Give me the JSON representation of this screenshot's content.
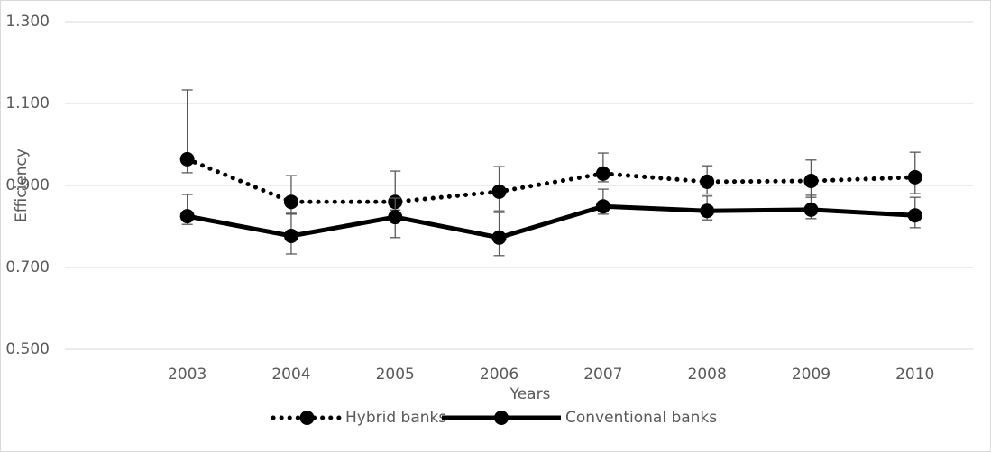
{
  "chart_data": {
    "type": "line",
    "x_label": "Years",
    "y_label": "Efficiency",
    "categories": [
      "2003",
      "2004",
      "2005",
      "2006",
      "2007",
      "2008",
      "2009",
      "2010"
    ],
    "series": [
      {
        "name": "Hybrid banks",
        "color": "#000000",
        "line_style": "dotted",
        "values": [
          0.964,
          0.86,
          0.86,
          0.885,
          0.929,
          0.909,
          0.911,
          0.92
        ],
        "error_minus": [
          0.033,
          0.03,
          0.02,
          0.047,
          0.02,
          0.03,
          0.04,
          0.04
        ],
        "error_plus": [
          0.169,
          0.064,
          0.075,
          0.061,
          0.05,
          0.039,
          0.051,
          0.061
        ]
      },
      {
        "name": "Conventional banks",
        "color": "#000000",
        "line_style": "solid",
        "values": [
          0.825,
          0.777,
          0.823,
          0.773,
          0.849,
          0.838,
          0.841,
          0.827
        ],
        "error_minus": [
          0.02,
          0.044,
          0.05,
          0.044,
          0.019,
          0.022,
          0.022,
          0.03
        ],
        "error_plus": [
          0.053,
          0.055,
          0.046,
          0.061,
          0.042,
          0.036,
          0.035,
          0.044
        ]
      }
    ],
    "ylim": [
      0.5,
      1.3
    ],
    "yticks": [
      {
        "value": 0.5,
        "label": "0.500"
      },
      {
        "value": 0.7,
        "label": "0.700"
      },
      {
        "value": 0.9,
        "label": "0.900"
      },
      {
        "value": 1.1,
        "label": "1.100"
      },
      {
        "value": 1.3,
        "label": "1.300"
      }
    ],
    "grid": true,
    "legend": "bottom"
  }
}
